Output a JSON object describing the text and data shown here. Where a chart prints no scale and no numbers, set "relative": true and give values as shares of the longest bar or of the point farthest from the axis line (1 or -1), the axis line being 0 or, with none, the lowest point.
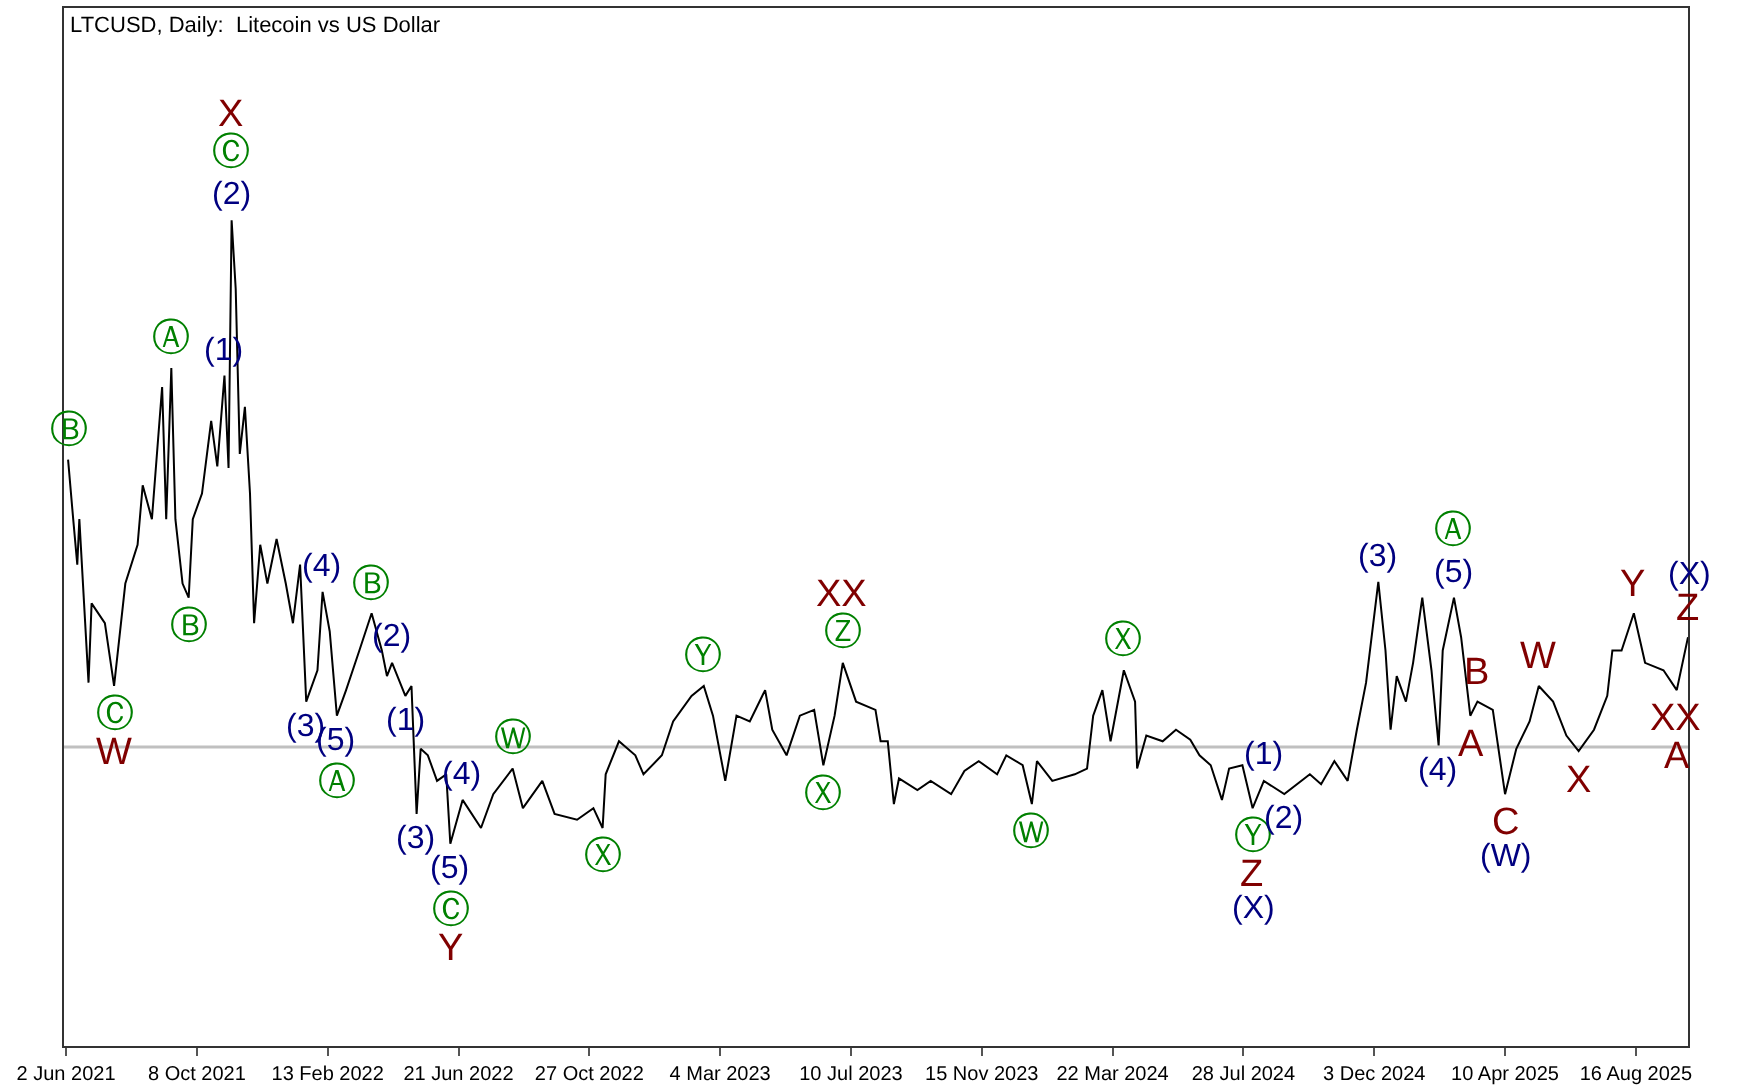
{
  "chart_data": {
    "type": "line",
    "title": "LTCUSD, Daily:  Litecoin vs US Dollar",
    "relative": true,
    "color": "#000000",
    "x": [
      "2021-06-04",
      "2021-06-09",
      "2021-06-13",
      "2021-06-15",
      "2021-06-24",
      "2021-06-27",
      "2021-07-10",
      "2021-07-19",
      "2021-07-30",
      "2021-08-11",
      "2021-08-16",
      "2021-08-25",
      "2021-09-04",
      "2021-09-08",
      "2021-09-13",
      "2021-09-17",
      "2021-09-24",
      "2021-09-30",
      "2021-10-04",
      "2021-10-13",
      "2021-10-22",
      "2021-10-28",
      "2021-11-04",
      "2021-11-08",
      "2021-11-11",
      "2021-11-15",
      "2021-11-19",
      "2021-11-24",
      "2021-11-29",
      "2021-12-03",
      "2021-12-09",
      "2021-12-16",
      "2021-12-25",
      "2022-01-03",
      "2022-01-10",
      "2022-01-17",
      "2022-01-23",
      "2022-02-03",
      "2022-02-08",
      "2022-02-15",
      "2022-02-22",
      "2022-03-03",
      "2022-03-16",
      "2022-03-28",
      "2022-04-07",
      "2022-04-12",
      "2022-04-17",
      "2022-04-30",
      "2022-05-06",
      "2022-05-11",
      "2022-05-15",
      "2022-05-22",
      "2022-05-31",
      "2022-06-09",
      "2022-06-13",
      "2022-06-25",
      "2022-07-13",
      "2022-07-25",
      "2022-08-13",
      "2022-08-23",
      "2022-09-11",
      "2022-09-23",
      "2022-10-15",
      "2022-10-31",
      "2022-11-09",
      "2022-11-12",
      "2022-11-25",
      "2022-12-11",
      "2022-12-19",
      "2023-01-06",
      "2023-01-17",
      "2023-02-04",
      "2023-02-16",
      "2023-02-25",
      "2023-03-09",
      "2023-03-20",
      "2023-04-02",
      "2023-04-17",
      "2023-04-24",
      "2023-05-08",
      "2023-05-21",
      "2023-06-04",
      "2023-06-13",
      "2023-06-24",
      "2023-07-02",
      "2023-07-15",
      "2023-08-03",
      "2023-08-08",
      "2023-08-15",
      "2023-08-21",
      "2023-08-26",
      "2023-09-13",
      "2023-09-26",
      "2023-10-16",
      "2023-10-29",
      "2023-11-12",
      "2023-11-30",
      "2023-12-09",
      "2023-12-25",
      "2024-01-03",
      "2024-01-08",
      "2024-01-23",
      "2024-02-14",
      "2024-02-26",
      "2024-03-03",
      "2024-03-12",
      "2024-03-20",
      "2024-04-02",
      "2024-04-13",
      "2024-04-15",
      "2024-04-24",
      "2024-05-10",
      "2024-05-23",
      "2024-06-06",
      "2024-06-15",
      "2024-06-26",
      "2024-07-07",
      "2024-07-14",
      "2024-07-27",
      "2024-08-06",
      "2024-08-17",
      "2024-09-06",
      "2024-10-01",
      "2024-10-12",
      "2024-10-25",
      "2024-11-07",
      "2024-11-16",
      "2024-11-25",
      "2024-12-07",
      "2024-12-14",
      "2024-12-19",
      "2024-12-25",
      "2025-01-03",
      "2025-01-10",
      "2025-01-19",
      "2025-01-28",
      "2025-02-04",
      "2025-02-08",
      "2025-02-19",
      "2025-02-26",
      "2025-03-07",
      "2025-03-14",
      "2025-03-29",
      "2025-04-10",
      "2025-04-21",
      "2025-05-04",
      "2025-05-13",
      "2025-05-27",
      "2025-06-09",
      "2025-06-21",
      "2025-07-06",
      "2025-07-19",
      "2025-07-24",
      "2025-08-02",
      "2025-08-14",
      "2025-08-25",
      "2025-09-12",
      "2025-09-25",
      "2025-10-06"
    ],
    "values": [
      0.71,
      0.638,
      0.583,
      0.638,
      0.44,
      0.536,
      0.512,
      0.436,
      0.56,
      0.607,
      0.679,
      0.638,
      0.798,
      0.638,
      0.821,
      0.638,
      0.56,
      0.543,
      0.638,
      0.669,
      0.757,
      0.702,
      0.812,
      0.7,
      1.0,
      0.917,
      0.717,
      0.774,
      0.669,
      0.512,
      0.607,
      0.56,
      0.614,
      0.56,
      0.512,
      0.583,
      0.417,
      0.455,
      0.55,
      0.502,
      0.4,
      0.431,
      0.479,
      0.524,
      0.479,
      0.448,
      0.464,
      0.424,
      0.436,
      0.281,
      0.36,
      0.352,
      0.321,
      0.329,
      0.245,
      0.298,
      0.264,
      0.305,
      0.336,
      0.288,
      0.321,
      0.281,
      0.274,
      0.288,
      0.264,
      0.329,
      0.369,
      0.352,
      0.329,
      0.352,
      0.393,
      0.424,
      0.436,
      0.4,
      0.321,
      0.4,
      0.393,
      0.431,
      0.383,
      0.352,
      0.4,
      0.407,
      0.34,
      0.4,
      0.464,
      0.417,
      0.407,
      0.369,
      0.369,
      0.293,
      0.324,
      0.31,
      0.321,
      0.305,
      0.333,
      0.345,
      0.329,
      0.352,
      0.34,
      0.293,
      0.345,
      0.321,
      0.329,
      0.336,
      0.4,
      0.431,
      0.369,
      0.455,
      0.417,
      0.336,
      0.376,
      0.369,
      0.383,
      0.371,
      0.352,
      0.34,
      0.298,
      0.336,
      0.34,
      0.288,
      0.321,
      0.305,
      0.329,
      0.317,
      0.345,
      0.321,
      0.383,
      0.44,
      0.562,
      0.479,
      0.383,
      0.448,
      0.417,
      0.464,
      0.543,
      0.455,
      0.364,
      0.479,
      0.543,
      0.495,
      0.4,
      0.417,
      0.407,
      0.305,
      0.36,
      0.393,
      0.436,
      0.417,
      0.376,
      0.357,
      0.383,
      0.424,
      0.479,
      0.479,
      0.524,
      0.464,
      0.455,
      0.431,
      0.495
    ],
    "xlim": [
      "2021-05-31",
      "2025-10-06"
    ],
    "xticks": [
      {
        "value": "2021-06-02",
        "label": "2 Jun 2021"
      },
      {
        "value": "2021-10-08",
        "label": "8 Oct 2021"
      },
      {
        "value": "2022-02-13",
        "label": "13 Feb 2022"
      },
      {
        "value": "2022-06-21",
        "label": "21 Jun 2022"
      },
      {
        "value": "2022-10-27",
        "label": "27 Oct 2022"
      },
      {
        "value": "2023-03-04",
        "label": "4 Mar 2023"
      },
      {
        "value": "2023-07-10",
        "label": "10 Jul 2023"
      },
      {
        "value": "2023-11-15",
        "label": "15 Nov 2023"
      },
      {
        "value": "2024-03-22",
        "label": "22 Mar 2024"
      },
      {
        "value": "2024-07-28",
        "label": "28 Jul 2024"
      },
      {
        "value": "2024-12-03",
        "label": "3 Dec 2024"
      },
      {
        "value": "2025-04-10",
        "label": "10 Apr 2025"
      },
      {
        "value": "2025-08-16",
        "label": "16 Aug 2025"
      }
    ],
    "ref_lines": [
      {
        "axis": "y",
        "value": 0.362,
        "color": "#c0c0c0"
      }
    ],
    "annotations": [
      {
        "text": "(2)",
        "x": "2021-11-11",
        "y": 1.0
      },
      {
        "text": "Ⓒ",
        "x": "2021-11-11",
        "y": 1.0
      },
      {
        "text": "X",
        "x": "2021-11-11",
        "y": 1.0
      },
      {
        "text": "(1)",
        "x": "2021-11-04",
        "y": 0.812
      },
      {
        "text": "Ⓐ",
        "x": "2021-09-13",
        "y": 0.821
      },
      {
        "text": "Ⓑ",
        "x": "2021-06-04",
        "y": 0.71
      },
      {
        "text": "Ⓑ",
        "x": "2021-09-30",
        "y": 0.543
      },
      {
        "text": "Ⓒ",
        "x": "2021-07-19",
        "y": 0.436
      },
      {
        "text": "W",
        "x": "2021-07-19",
        "y": 0.436
      },
      {
        "text": "(4)",
        "x": "2022-02-08",
        "y": 0.55
      },
      {
        "text": "Ⓑ",
        "x": "2022-03-28",
        "y": 0.524
      },
      {
        "text": "(3)",
        "x": "2022-01-23",
        "y": 0.417
      },
      {
        "text": "(5)",
        "x": "2022-02-22",
        "y": 0.4
      },
      {
        "text": "Ⓐ",
        "x": "2022-02-22",
        "y": 0.4
      },
      {
        "text": "(2)",
        "x": "2022-04-17",
        "y": 0.464
      },
      {
        "text": "(1)",
        "x": "2022-04-30",
        "y": 0.424
      },
      {
        "text": "(4)",
        "x": "2022-06-25",
        "y": 0.298
      },
      {
        "text": "(3)",
        "x": "2022-05-11",
        "y": 0.281
      },
      {
        "text": "(5)",
        "x": "2022-06-13",
        "y": 0.245
      },
      {
        "text": "Ⓒ",
        "x": "2022-06-13",
        "y": 0.245
      },
      {
        "text": "Y",
        "x": "2022-06-13",
        "y": 0.245
      },
      {
        "text": "Ⓦ",
        "x": "2022-08-13",
        "y": 0.336
      },
      {
        "text": "Ⓧ",
        "x": "2022-11-09",
        "y": 0.264
      },
      {
        "text": "Ⓨ",
        "x": "2023-02-16",
        "y": 0.436
      },
      {
        "text": "Ⓩ",
        "x": "2023-07-02",
        "y": 0.464
      },
      {
        "text": "XX",
        "x": "2023-07-02",
        "y": 0.464
      },
      {
        "text": "Ⓧ",
        "x": "2023-06-13",
        "y": 0.34
      },
      {
        "text": "Ⓦ",
        "x": "2024-01-03",
        "y": 0.293
      },
      {
        "text": "Ⓧ",
        "x": "2024-04-02",
        "y": 0.455
      },
      {
        "text": "Ⓨ",
        "x": "2024-08-06",
        "y": 0.288
      },
      {
        "text": "Z",
        "x": "2024-08-06",
        "y": 0.288
      },
      {
        "text": "(X)",
        "x": "2024-08-06",
        "y": 0.288
      },
      {
        "text": "(1)",
        "x": "2024-08-17",
        "y": 0.321
      },
      {
        "text": "(2)",
        "x": "2024-09-06",
        "y": 0.305
      },
      {
        "text": "(3)",
        "x": "2024-12-07",
        "y": 0.562
      },
      {
        "text": "(5)",
        "x": "2025-02-19",
        "y": 0.543
      },
      {
        "text": "Ⓐ",
        "x": "2025-02-19",
        "y": 0.543
      },
      {
        "text": "(4)",
        "x": "2025-02-04",
        "y": 0.364
      },
      {
        "text": "B",
        "x": "2025-03-14",
        "y": 0.417
      },
      {
        "text": "A",
        "x": "2025-03-07",
        "y": 0.4
      },
      {
        "text": "C",
        "x": "2025-04-10",
        "y": 0.305
      },
      {
        "text": "(W)",
        "x": "2025-04-10",
        "y": 0.305
      },
      {
        "text": "W",
        "x": "2025-05-13",
        "y": 0.436
      },
      {
        "text": "X",
        "x": "2025-06-21",
        "y": 0.357
      },
      {
        "text": "Y",
        "x": "2025-08-14",
        "y": 0.524
      },
      {
        "text": "XX",
        "x": "2025-09-25",
        "y": 0.431
      },
      {
        "text": "A",
        "x": "2025-09-25",
        "y": 0.431
      },
      {
        "text": "Z",
        "x": "2025-10-06",
        "y": 0.495
      },
      {
        "text": "(X)",
        "x": "2025-10-06",
        "y": 0.495
      }
    ]
  }
}
